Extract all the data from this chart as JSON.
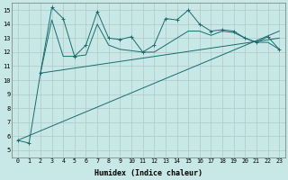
{
  "xlabel": "Humidex (Indice chaleur)",
  "bg_color": "#c8e8e8",
  "line_color": "#1a6b6b",
  "grid_color": "#b0c8c8",
  "xlim": [
    -0.5,
    23.5
  ],
  "ylim": [
    4.5,
    15.5
  ],
  "yticks": [
    5,
    6,
    7,
    8,
    9,
    10,
    11,
    12,
    13,
    14,
    15
  ],
  "xticks": [
    0,
    1,
    2,
    3,
    4,
    5,
    6,
    7,
    8,
    9,
    10,
    11,
    12,
    13,
    14,
    15,
    16,
    17,
    18,
    19,
    20,
    21,
    22,
    23
  ],
  "series1_x": [
    0,
    1,
    2,
    3,
    4,
    5,
    6,
    7,
    8,
    9,
    10,
    11,
    12,
    13,
    14,
    15,
    16,
    17,
    18,
    19,
    20,
    21,
    22,
    23
  ],
  "series1_y": [
    5.7,
    5.5,
    10.5,
    15.2,
    14.4,
    11.7,
    12.5,
    14.9,
    13.0,
    12.9,
    13.1,
    12.0,
    12.5,
    14.4,
    14.3,
    15.0,
    14.0,
    13.5,
    13.6,
    13.5,
    13.0,
    12.7,
    13.1,
    12.2
  ],
  "series2_x": [
    2,
    3,
    4,
    5,
    6,
    7,
    8,
    9,
    10,
    11,
    12,
    13,
    14,
    15,
    16,
    17,
    18,
    19,
    20,
    21,
    22,
    23
  ],
  "series2_y": [
    10.5,
    14.3,
    11.7,
    11.7,
    11.8,
    14.0,
    12.5,
    12.2,
    12.1,
    12.0,
    12.0,
    12.5,
    13.0,
    13.5,
    13.5,
    13.2,
    13.5,
    13.4,
    13.0,
    12.7,
    12.7,
    12.2
  ],
  "trend1_x": [
    2,
    23
  ],
  "trend1_y": [
    10.5,
    13.0
  ],
  "trend2_x": [
    0,
    23
  ],
  "trend2_y": [
    5.7,
    13.5
  ]
}
